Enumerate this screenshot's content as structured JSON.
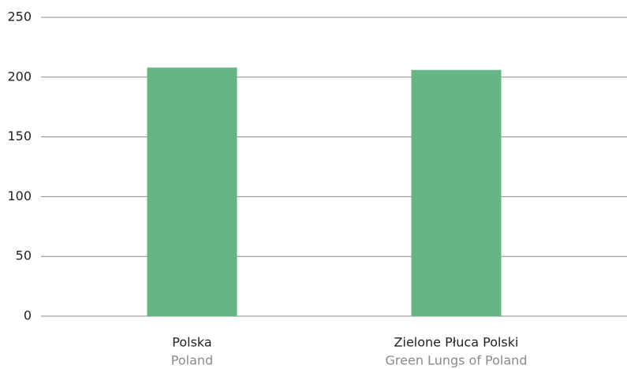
{
  "chart_data": {
    "type": "bar",
    "categories": [
      "Polska",
      "Zielone Płuca Polski"
    ],
    "category_translations": [
      "Poland",
      "Green Lungs of Poland"
    ],
    "values": [
      208,
      206
    ],
    "color": "#66b685",
    "ylim": [
      0,
      250
    ],
    "yticks": [
      0,
      50,
      100,
      150,
      200,
      250
    ],
    "grid": true
  }
}
